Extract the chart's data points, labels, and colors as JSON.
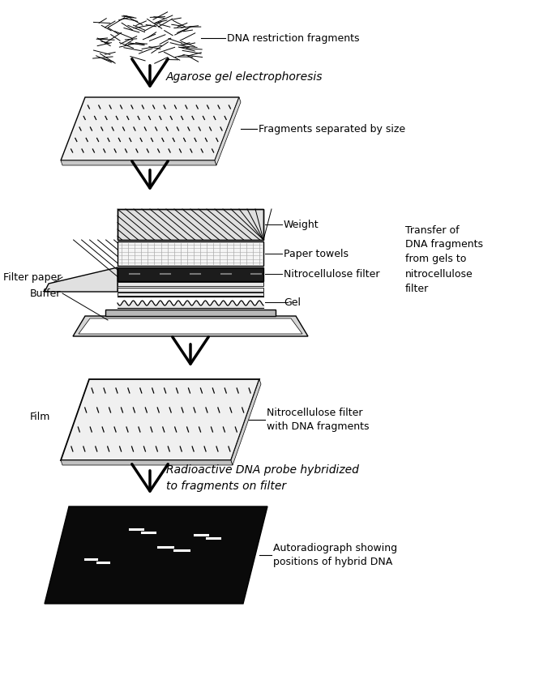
{
  "bg_color": "#ffffff",
  "text_color": "#000000",
  "labels": {
    "dna_fragments": "DNA restriction fragments",
    "agarose": "Agarose gel electrophoresis",
    "separated": "Fragments separated by size",
    "weight": "Weight",
    "paper_towels": "Paper towels",
    "nitrocellulose": "Nitrocellulose filter",
    "gel": "Gel",
    "filter_paper": "Filter paper",
    "buffer": "Buffer",
    "transfer_text": "Transfer of\nDNA fragments\nfrom gels to\nnitrocellulose\nfilter",
    "film": "Film",
    "nitrocellulose_filter_with": "Nitrocellulose filter\nwith DNA fragments",
    "radioactive": "Radioactive DNA probe hybridized\nto fragments on filter",
    "autoradiograph": "Autoradiograph showing\npositions of hybrid DNA"
  },
  "font_sizes": {
    "label": 9,
    "italic": 10
  }
}
